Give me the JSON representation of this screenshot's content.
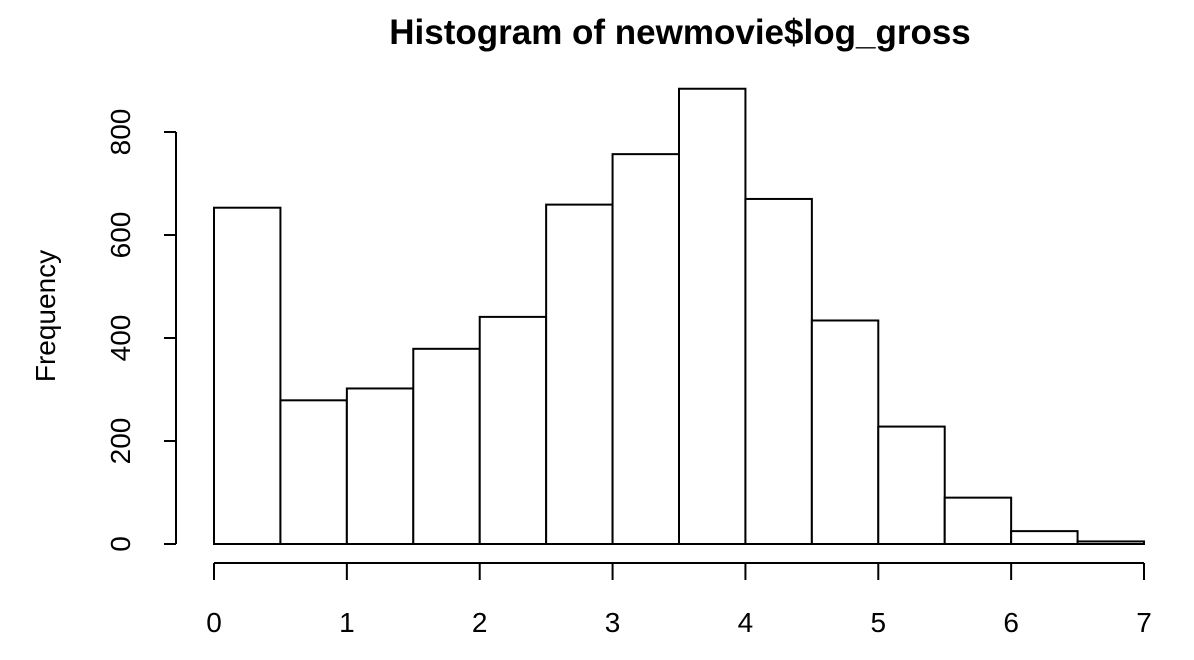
{
  "chart_data": {
    "type": "bar",
    "title": "Histogram of newmovie$log_gross",
    "xlabel": "",
    "ylabel": "Frequency",
    "bin_width": 0.5,
    "bin_starts": [
      0,
      0.5,
      1,
      1.5,
      2,
      2.5,
      3,
      3.5,
      4,
      4.5,
      5,
      5.5,
      6,
      6.5
    ],
    "values": [
      653,
      279,
      302,
      379,
      441,
      659,
      757,
      884,
      670,
      434,
      228,
      90,
      25,
      5
    ],
    "xlim": [
      0,
      7
    ],
    "ylim": [
      0,
      900
    ],
    "x_ticks": [
      "0",
      "1",
      "2",
      "3",
      "4",
      "5",
      "6",
      "7"
    ],
    "y_ticks": [
      "0",
      "200",
      "400",
      "600",
      "800"
    ],
    "grid": false
  }
}
